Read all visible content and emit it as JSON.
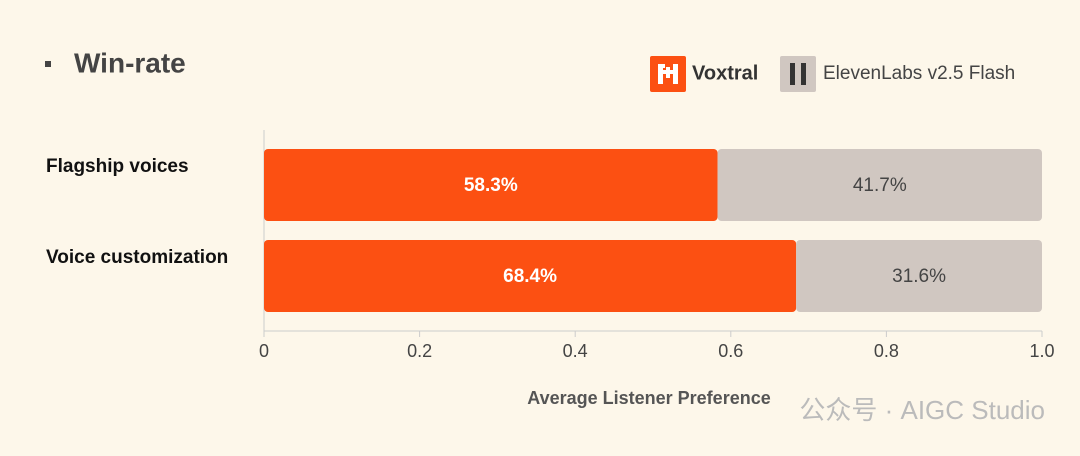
{
  "chart_data": {
    "type": "stacked_bar_horizontal",
    "title": "Win-rate",
    "x_label": "Average Listener Preference",
    "categories": [
      "Flagship voices",
      "Voice customization"
    ],
    "series": [
      {
        "name": "Voxtral",
        "color": "#fc5012",
        "values": [
          0.583,
          0.684
        ],
        "value_labels": [
          "58.3%",
          "68.4%"
        ]
      },
      {
        "name": "ElevenLabs v2.5 Flash",
        "color": "#d0c7c1",
        "values": [
          0.417,
          0.316
        ],
        "value_labels": [
          "41.7%",
          "31.6%"
        ]
      }
    ],
    "xlim": [
      0,
      1
    ],
    "xticks": [
      0,
      0.2,
      0.4,
      0.6,
      0.8,
      {
        "value": 1,
        "label": "1.0"
      }
    ],
    "legend": "top-right",
    "watermark": "公众号 · AIGC Studio"
  }
}
